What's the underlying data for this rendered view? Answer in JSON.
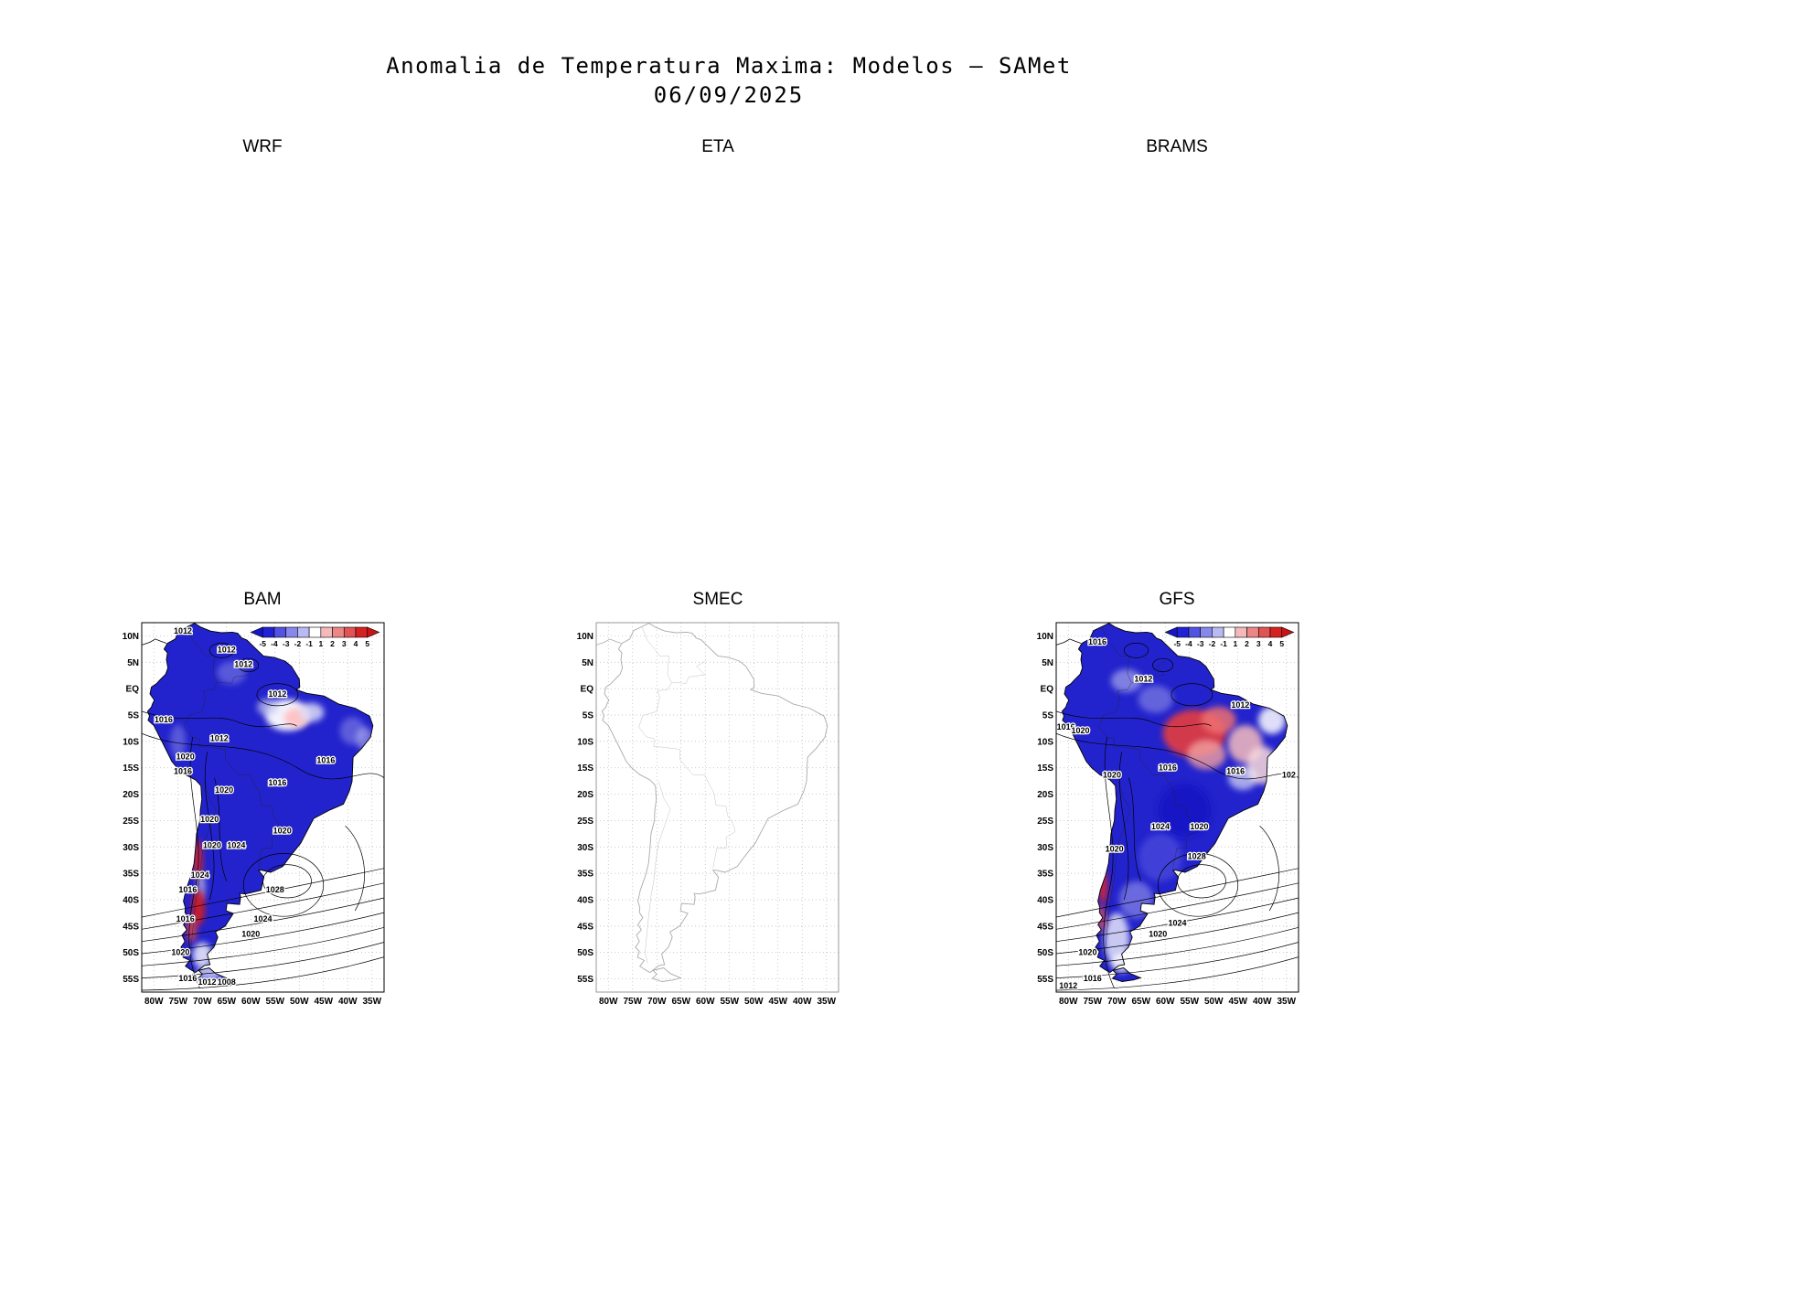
{
  "header": {
    "title": "Anomalia de Temperatura Maxima: Modelos — SAMet",
    "date": "06/09/2025"
  },
  "chart_data": {
    "type": "heatmap",
    "title": "Anomalia de Temperatura Maxima: Modelos — SAMet",
    "subtitle": "06/09/2025",
    "layout": "2x3 model panels; top row panels show titles only (maps not rendered)",
    "grid": "dotted 5-degree graticule",
    "lat_ticks": [
      "10N",
      "5N",
      "EQ",
      "5S",
      "10S",
      "15S",
      "20S",
      "25S",
      "30S",
      "35S",
      "40S",
      "45S",
      "50S",
      "55S"
    ],
    "lon_ticks": [
      "80W",
      "75W",
      "70W",
      "65W",
      "60W",
      "55W",
      "50W",
      "45W",
      "40W",
      "35W"
    ],
    "colorbar": {
      "tick_labels": [
        "-5",
        "-4",
        "-3",
        "-2",
        "-1",
        "1",
        "2",
        "3",
        "4",
        "5"
      ],
      "segment_colors": [
        "#2121d6",
        "#5353e2",
        "#8787ec",
        "#b9b9f4",
        "#ffffff",
        "#f4b9b9",
        "#ec8787",
        "#e25353",
        "#d62121"
      ],
      "arrow_left_color": "#1414c8",
      "arrow_right_color": "#c81414"
    },
    "panels": [
      {
        "label": "WRF",
        "map_rendered": false
      },
      {
        "label": "ETA",
        "map_rendered": false
      },
      {
        "label": "BRAMS",
        "map_rendered": false
      },
      {
        "label": "BAM",
        "map_rendered": true,
        "fill_style": "anomaly",
        "colorbar": true,
        "base_fill": "#2323cd",
        "anomaly_regions": [
          {
            "lon": -52.5,
            "lat": -5.0,
            "rx": 4.5,
            "ry": 3.0,
            "c": "#ffffff",
            "o": 0.95
          },
          {
            "lon": -50.5,
            "lat": -5.5,
            "rx": 2.6,
            "ry": 1.8,
            "c": "#ffbdbd",
            "o": 0.9
          },
          {
            "lon": -47.5,
            "lat": -4.5,
            "rx": 2.6,
            "ry": 1.8,
            "c": "#dcdcf8",
            "o": 0.85
          },
          {
            "lon": -56.5,
            "lat": -3.5,
            "rx": 2.2,
            "ry": 1.6,
            "c": "#c9c9f2",
            "o": 0.7
          },
          {
            "lon": -39.0,
            "lat": -8.0,
            "rx": 2.6,
            "ry": 2.6,
            "c": "#8e8ee8",
            "o": 0.55
          },
          {
            "lon": -36.5,
            "lat": -9.5,
            "rx": 1.8,
            "ry": 2.2,
            "c": "#c9c9f2",
            "o": 0.5
          },
          {
            "lon": -64.0,
            "lat": 3.0,
            "rx": 3.0,
            "ry": 2.2,
            "c": "#8e8ee8",
            "o": 0.5
          },
          {
            "lon": -75.0,
            "lat": -10.0,
            "rx": 1.6,
            "ry": 3.2,
            "c": "#8e8ee8",
            "o": 0.5
          },
          {
            "lon": -70.9,
            "lat": -32.5,
            "rx": 0.9,
            "ry": 4.0,
            "c": "#e02828",
            "o": 0.92
          },
          {
            "lon": -70.2,
            "lat": -37.5,
            "rx": 0.8,
            "ry": 2.6,
            "c": "#f2f2f2",
            "o": 0.6
          },
          {
            "lon": -70.8,
            "lat": -41.5,
            "rx": 1.3,
            "ry": 3.4,
            "c": "#d61c1c",
            "o": 0.95
          },
          {
            "lon": -72.2,
            "lat": -45.5,
            "rx": 1.1,
            "ry": 2.6,
            "c": "#e24444",
            "o": 0.85
          },
          {
            "lon": -70.0,
            "lat": -50.5,
            "rx": 2.0,
            "ry": 2.4,
            "c": "#ffffff",
            "o": 0.8
          },
          {
            "lon": -68.5,
            "lat": -53.8,
            "rx": 2.6,
            "ry": 1.4,
            "c": "#dcdcf8",
            "o": 0.8
          }
        ],
        "contour_labels": [
          {
            "v": "1012",
            "x": 0.17,
            "y": 0.03
          },
          {
            "v": "1012",
            "x": 0.35,
            "y": 0.08
          },
          {
            "v": "1012",
            "x": 0.42,
            "y": 0.12
          },
          {
            "v": "1012",
            "x": 0.56,
            "y": 0.2
          },
          {
            "v": "1016",
            "x": 0.09,
            "y": 0.27
          },
          {
            "v": "1012",
            "x": 0.32,
            "y": 0.32
          },
          {
            "v": "1020",
            "x": 0.18,
            "y": 0.37
          },
          {
            "v": "1016",
            "x": 0.17,
            "y": 0.41
          },
          {
            "v": "1016",
            "x": 0.76,
            "y": 0.38
          },
          {
            "v": "1016",
            "x": 0.56,
            "y": 0.44
          },
          {
            "v": "1020",
            "x": 0.34,
            "y": 0.46
          },
          {
            "v": "1020",
            "x": 0.28,
            "y": 0.54
          },
          {
            "v": "1020",
            "x": 0.29,
            "y": 0.61
          },
          {
            "v": "1024",
            "x": 0.39,
            "y": 0.61
          },
          {
            "v": "1020",
            "x": 0.58,
            "y": 0.57
          },
          {
            "v": "1024",
            "x": 0.24,
            "y": 0.69
          },
          {
            "v": "1016",
            "x": 0.19,
            "y": 0.73
          },
          {
            "v": "1028",
            "x": 0.55,
            "y": 0.73
          },
          {
            "v": "1016",
            "x": 0.18,
            "y": 0.81
          },
          {
            "v": "1024",
            "x": 0.5,
            "y": 0.81
          },
          {
            "v": "1020",
            "x": 0.45,
            "y": 0.85
          },
          {
            "v": "1020",
            "x": 0.16,
            "y": 0.9
          },
          {
            "v": "1016",
            "x": 0.19,
            "y": 0.97
          },
          {
            "v": "1012",
            "x": 0.27,
            "y": 0.98
          },
          {
            "v": "1008",
            "x": 0.35,
            "y": 0.98
          }
        ]
      },
      {
        "label": "SMEC",
        "map_rendered": true,
        "fill_style": "outline_only",
        "colorbar": false,
        "base_fill": "",
        "anomaly_regions": [],
        "contour_labels": []
      },
      {
        "label": "GFS",
        "map_rendered": true,
        "fill_style": "anomaly",
        "colorbar": true,
        "base_fill": "#2323cd",
        "anomaly_regions": [
          {
            "lon": -54.0,
            "lat": -8.5,
            "rx": 6.5,
            "ry": 4.5,
            "c": "#e63c3c",
            "o": 0.9
          },
          {
            "lon": -49.0,
            "lat": -6.0,
            "rx": 3.6,
            "ry": 2.6,
            "c": "#ef6f6f",
            "o": 0.85
          },
          {
            "lon": -51.5,
            "lat": -12.5,
            "rx": 4.0,
            "ry": 2.8,
            "c": "#f2a0a0",
            "o": 0.8
          },
          {
            "lon": -43.5,
            "lat": -10.5,
            "rx": 3.6,
            "ry": 3.6,
            "c": "#f6bcbc",
            "o": 0.85
          },
          {
            "lon": -40.0,
            "lat": -14.5,
            "rx": 3.2,
            "ry": 3.6,
            "c": "#fadada",
            "o": 0.85
          },
          {
            "lon": -38.0,
            "lat": -6.0,
            "rx": 2.8,
            "ry": 2.6,
            "c": "#ffffff",
            "o": 0.85
          },
          {
            "lon": -44.0,
            "lat": -17.0,
            "rx": 3.0,
            "ry": 2.2,
            "c": "#ffffff",
            "o": 0.6
          },
          {
            "lon": -62.0,
            "lat": -2.0,
            "rx": 3.6,
            "ry": 2.6,
            "c": "#9a9aea",
            "o": 0.55
          },
          {
            "lon": -68.0,
            "lat": 1.5,
            "rx": 3.2,
            "ry": 2.2,
            "c": "#dcdcf8",
            "o": 0.5
          },
          {
            "lon": -56.0,
            "lat": -23.0,
            "rx": 5.5,
            "ry": 5.0,
            "c": "#1515c4",
            "o": 0.9
          },
          {
            "lon": -61.0,
            "lat": -32.0,
            "rx": 4.5,
            "ry": 4.5,
            "c": "#4b4bdc",
            "o": 0.75
          },
          {
            "lon": -66.0,
            "lat": -40.0,
            "rx": 3.5,
            "ry": 3.5,
            "c": "#9a9aea",
            "o": 0.6
          },
          {
            "lon": -70.0,
            "lat": -47.5,
            "rx": 2.6,
            "ry": 5.0,
            "c": "#e6e6fa",
            "o": 0.85
          },
          {
            "lon": -72.8,
            "lat": -37.5,
            "rx": 0.9,
            "ry": 3.4,
            "c": "#e02828",
            "o": 0.9
          },
          {
            "lon": -73.2,
            "lat": -43.5,
            "rx": 0.9,
            "ry": 2.6,
            "c": "#e65555",
            "o": 0.8
          },
          {
            "lon": -69.0,
            "lat": -52.0,
            "rx": 2.0,
            "ry": 1.8,
            "c": "#ffffff",
            "o": 0.8
          }
        ],
        "contour_labels": [
          {
            "v": "1016",
            "x": 0.17,
            "y": 0.06
          },
          {
            "v": "1012",
            "x": 0.36,
            "y": 0.16
          },
          {
            "v": "1012",
            "x": 0.76,
            "y": 0.23
          },
          {
            "v": "1016",
            "x": 0.04,
            "y": 0.29
          },
          {
            "v": "1020",
            "x": 0.1,
            "y": 0.3
          },
          {
            "v": "1020",
            "x": 0.23,
            "y": 0.42
          },
          {
            "v": "1016",
            "x": 0.46,
            "y": 0.4
          },
          {
            "v": "1016",
            "x": 0.74,
            "y": 0.41
          },
          {
            "v": "102",
            "x": 0.96,
            "y": 0.42
          },
          {
            "v": "1024",
            "x": 0.43,
            "y": 0.56
          },
          {
            "v": "1020",
            "x": 0.59,
            "y": 0.56
          },
          {
            "v": "1020",
            "x": 0.24,
            "y": 0.62
          },
          {
            "v": "1028",
            "x": 0.58,
            "y": 0.64
          },
          {
            "v": "1024",
            "x": 0.5,
            "y": 0.82
          },
          {
            "v": "1020",
            "x": 0.42,
            "y": 0.85
          },
          {
            "v": "1020",
            "x": 0.13,
            "y": 0.9
          },
          {
            "v": "1016",
            "x": 0.15,
            "y": 0.97
          },
          {
            "v": "1012",
            "x": 0.05,
            "y": 0.99
          }
        ]
      }
    ]
  }
}
